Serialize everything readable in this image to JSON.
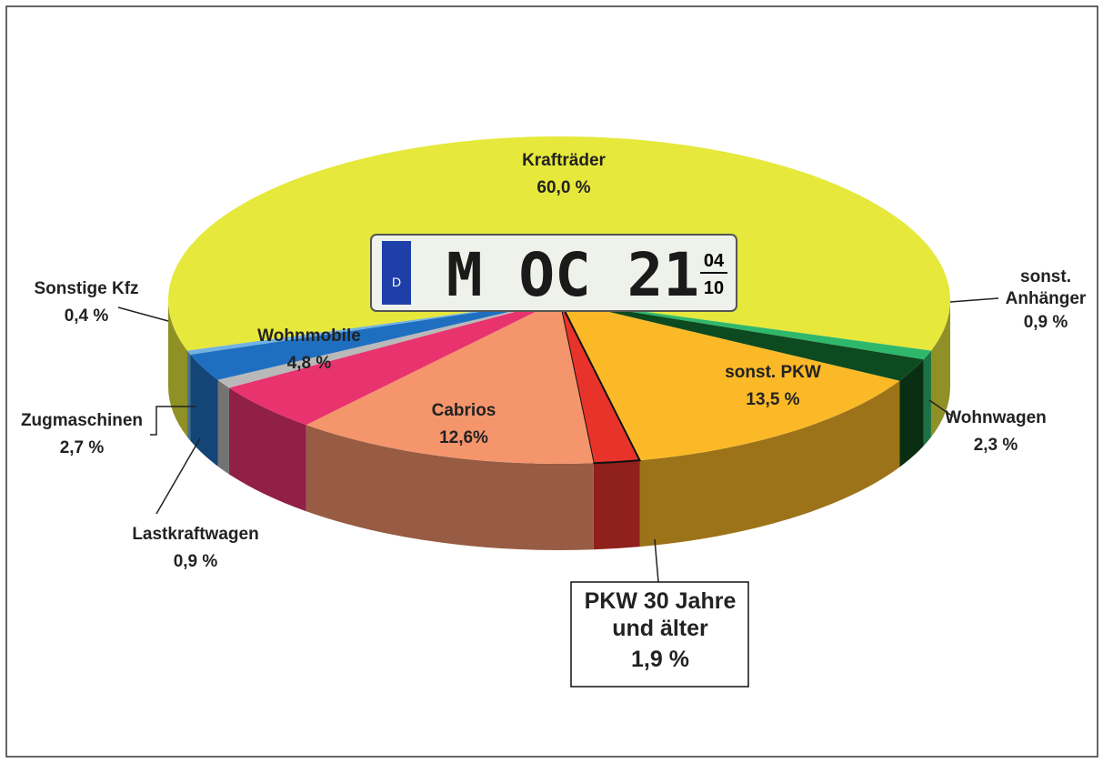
{
  "chart_data": {
    "type": "pie3d",
    "categories": [
      "Krafträder",
      "sonst. Anhänger",
      "Wohnwagen",
      "sonst. PKW",
      "PKW 30 Jahre und älter",
      "Cabrios",
      "Wohnmobile",
      "Lastkraftwagen",
      "Zugmaschinen",
      "Sonstige Kfz"
    ],
    "values": [
      60.0,
      0.9,
      2.3,
      13.5,
      1.9,
      12.6,
      4.8,
      0.9,
      2.7,
      0.4
    ],
    "value_labels": [
      "60,0 %",
      "0,9 %",
      "2,3 %",
      "13,5 %",
      "1,9 %",
      "12,6%",
      "4,8 %",
      "0,9 %",
      "2,7 %",
      "0,4 %"
    ],
    "colors": [
      "#e6e83c",
      "#2fb86c",
      "#0e4a1f",
      "#fbb928",
      "#e8332b",
      "#f4956c",
      "#e8336f",
      "#b9b9b9",
      "#1f6fc0",
      "#72b2e2"
    ],
    "plate": {
      "country": "D",
      "text": "M OC 21",
      "month": "04",
      "year": "10"
    }
  }
}
